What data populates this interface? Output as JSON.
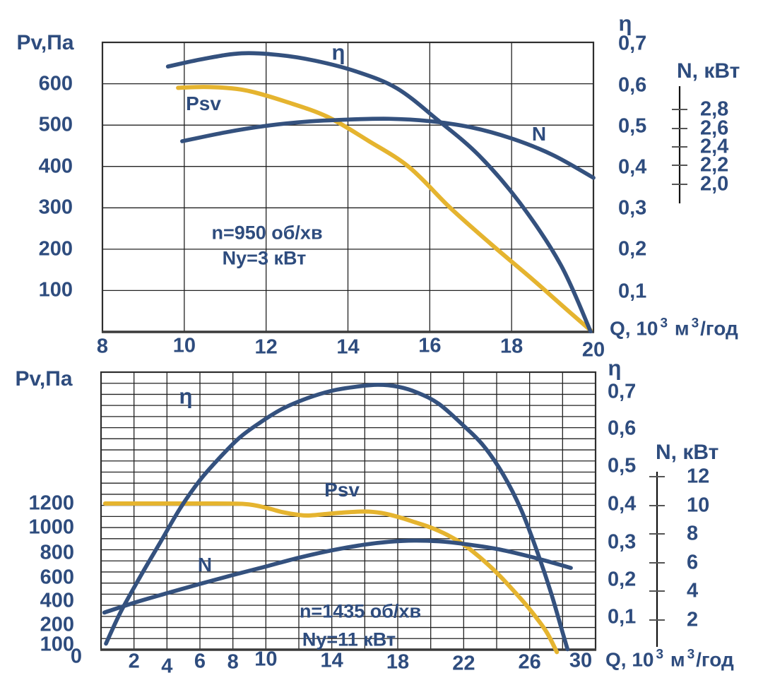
{
  "colors": {
    "curve_blue": "#34517E",
    "curve_yellow": "#E5B42F",
    "text_blue": "#2E4C7E",
    "grid": "#222222",
    "border": "#2E2E2E",
    "axis_dark": "#3A3A3A",
    "background": "#FFFFFF"
  },
  "q_label_parts": {
    "b1": "Q, 10",
    "s1": "3",
    "b2": " м",
    "s2": "3",
    "b3": "/год"
  },
  "chart_data": [
    {
      "id": "fan-curve-950rpm",
      "type": "line",
      "title": "",
      "x_axis": {
        "label": "Q, 10³ м³/год",
        "range": [
          8,
          20
        ],
        "ticks": [
          "8",
          "10",
          "12",
          "14",
          "16",
          "18",
          "20"
        ]
      },
      "pv_axis": {
        "label": "Pv,Па",
        "range": [
          0,
          700
        ],
        "ticks": [
          "600",
          "500",
          "400",
          "300",
          "200",
          "100"
        ]
      },
      "eta_axis": {
        "label": "η",
        "range": [
          0,
          0.7
        ],
        "ticks": [
          "0,7",
          "0,6",
          "0,5",
          "0,4",
          "0,3",
          "0,2",
          "0,1"
        ]
      },
      "n_axis": {
        "label": "N, кВт",
        "range": [
          2.0,
          2.8
        ],
        "ticks": [
          "2,8",
          "2,6",
          "2,4",
          "2,2",
          "2,0"
        ]
      },
      "annotations": {
        "speed": "n=950 об/хв",
        "power": "Ny=3 кВт"
      },
      "series": [
        {
          "name": "Psv",
          "axis": "pv",
          "color_key": "curve_yellow",
          "points": [
            [
              9.85,
              590
            ],
            [
              10.6,
              592
            ],
            [
              11.5,
              584
            ],
            [
              12.5,
              556
            ],
            [
              13.5,
              520
            ],
            [
              14.5,
              462
            ],
            [
              15.5,
              398
            ],
            [
              16.5,
              300
            ],
            [
              17.5,
              212
            ],
            [
              18.5,
              128
            ],
            [
              19.3,
              58
            ],
            [
              19.93,
              4
            ]
          ]
        },
        {
          "name": "η",
          "axis": "eta",
          "color_key": "curve_blue",
          "points": [
            [
              9.6,
              0.645
            ],
            [
              10.5,
              0.664
            ],
            [
              11.4,
              0.677
            ],
            [
              12.3,
              0.673
            ],
            [
              13.2,
              0.659
            ],
            [
              14.2,
              0.633
            ],
            [
              15.2,
              0.592
            ],
            [
              16.2,
              0.515
            ],
            [
              17.2,
              0.43
            ],
            [
              18.2,
              0.315
            ],
            [
              19.2,
              0.165
            ],
            [
              19.93,
              0.004
            ]
          ]
        },
        {
          "name": "N",
          "axis": "n",
          "color_key": "curve_blue",
          "points": [
            [
              9.95,
              2.46
            ],
            [
              11,
              2.555
            ],
            [
              12,
              2.625
            ],
            [
              13,
              2.67
            ],
            [
              14,
              2.692
            ],
            [
              15,
              2.7
            ],
            [
              16,
              2.675
            ],
            [
              17,
              2.61
            ],
            [
              18,
              2.49
            ],
            [
              19,
              2.315
            ],
            [
              20,
              2.07
            ]
          ]
        }
      ]
    },
    {
      "id": "fan-curve-1435rpm",
      "type": "line",
      "title": "",
      "x_axis": {
        "label": "Q, 10³ м³/год",
        "range": [
          0,
          30
        ],
        "ticks": [
          "0",
          "2",
          "4",
          "6",
          "8",
          "10",
          "14",
          "18",
          "22",
          "26",
          "30"
        ]
      },
      "pv_axis": {
        "label": "Pv,Па",
        "range": [
          0,
          1300
        ],
        "ticks": [
          "1200",
          "1000",
          "800",
          "600",
          "400",
          "200",
          "100"
        ]
      },
      "eta_axis": {
        "label": "η",
        "range": [
          0,
          0.7
        ],
        "ticks": [
          "0,7",
          "0,6",
          "0,5",
          "0,4",
          "0,3",
          "0,2",
          "0,1"
        ]
      },
      "n_axis": {
        "label": "N, кВт",
        "range": [
          2,
          12
        ],
        "ticks": [
          "12",
          "10",
          "8",
          "6",
          "4",
          "2"
        ]
      },
      "annotations": {
        "speed": "n=1435 об/хв",
        "power": "Ny=11 кВт"
      },
      "series": [
        {
          "name": "Psv",
          "axis": "pv",
          "color_key": "curve_yellow",
          "points": [
            [
              0.25,
              1200
            ],
            [
              3,
              1200
            ],
            [
              6,
              1200
            ],
            [
              8.7,
              1196
            ],
            [
              10,
              1165
            ],
            [
              11,
              1128
            ],
            [
              12,
              1105
            ],
            [
              12.6,
              1100
            ],
            [
              13.6,
              1112
            ],
            [
              14.8,
              1126
            ],
            [
              16,
              1133
            ],
            [
              17,
              1121
            ],
            [
              18,
              1089
            ],
            [
              19,
              1046
            ],
            [
              20,
              1000
            ],
            [
              21,
              942
            ],
            [
              22,
              866
            ],
            [
              23,
              762
            ],
            [
              24,
              640
            ],
            [
              25,
              492
            ],
            [
              26,
              332
            ],
            [
              27,
              168
            ],
            [
              27.65,
              35
            ]
          ]
        },
        {
          "name": "η",
          "axis": "eta",
          "color_key": "curve_blue",
          "points": [
            [
              0.3,
              0.03
            ],
            [
              1.2,
              0.115
            ],
            [
              2.4,
              0.21
            ],
            [
              3.6,
              0.3
            ],
            [
              4.8,
              0.39
            ],
            [
              6,
              0.465
            ],
            [
              7.2,
              0.525
            ],
            [
              8.4,
              0.578
            ],
            [
              9.6,
              0.617
            ],
            [
              11,
              0.655
            ],
            [
              12.5,
              0.683
            ],
            [
              14,
              0.703
            ],
            [
              15.5,
              0.714
            ],
            [
              16.8,
              0.719
            ],
            [
              18,
              0.714
            ],
            [
              19.2,
              0.698
            ],
            [
              20.5,
              0.668
            ],
            [
              22,
              0.61
            ],
            [
              23.2,
              0.557
            ],
            [
              24.4,
              0.48
            ],
            [
              25.5,
              0.385
            ],
            [
              26.5,
              0.27
            ],
            [
              27.3,
              0.165
            ],
            [
              28,
              0.06
            ],
            [
              28.3,
              0.015
            ]
          ]
        },
        {
          "name": "N",
          "axis": "n",
          "color_key": "curve_blue",
          "points": [
            [
              0.2,
              2.5
            ],
            [
              2,
              3.18
            ],
            [
              4,
              3.85
            ],
            [
              6,
              4.5
            ],
            [
              8,
              5.12
            ],
            [
              10,
              5.72
            ],
            [
              12,
              6.33
            ],
            [
              14,
              6.85
            ],
            [
              16,
              7.25
            ],
            [
              17.5,
              7.45
            ],
            [
              19,
              7.53
            ],
            [
              20.5,
              7.48
            ],
            [
              22,
              7.3
            ],
            [
              24,
              6.95
            ],
            [
              26,
              6.42
            ],
            [
              27.5,
              5.95
            ],
            [
              28.5,
              5.62
            ]
          ]
        }
      ]
    }
  ]
}
